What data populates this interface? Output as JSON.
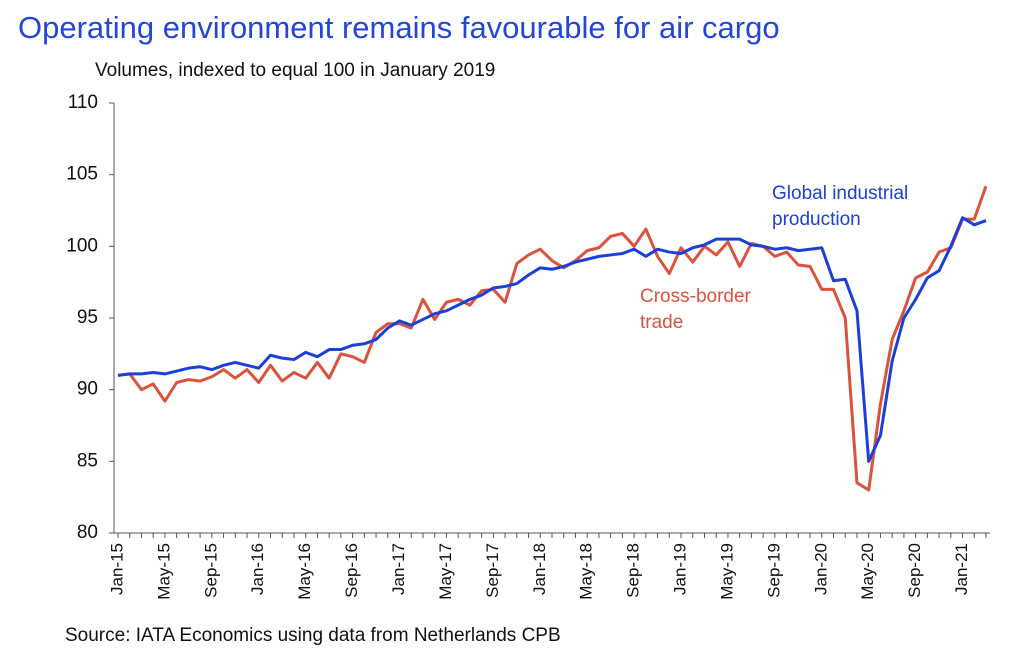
{
  "chart_data": {
    "type": "line",
    "title": "Operating environment remains favourable for air cargo",
    "subtitle": "Volumes, indexed to equal 100 in January 2019",
    "source": "Source: IATA Economics using data from Netherlands CPB",
    "categories": [
      "Jan-15",
      null,
      null,
      null,
      "May-15",
      null,
      null,
      null,
      "Sep-15",
      null,
      null,
      null,
      "Jan-16",
      null,
      null,
      null,
      "May-16",
      null,
      null,
      null,
      "Sep-16",
      null,
      null,
      null,
      "Jan-17",
      null,
      null,
      null,
      "May-17",
      null,
      null,
      null,
      "Sep-17",
      null,
      null,
      null,
      "Jan-18",
      null,
      null,
      null,
      "May-18",
      null,
      null,
      null,
      "Sep-18",
      null,
      null,
      null,
      "Jan-19",
      null,
      null,
      null,
      "May-19",
      null,
      null,
      null,
      "Sep-19",
      null,
      null,
      null,
      "Jan-20",
      null,
      null,
      null,
      "May-20",
      null,
      null,
      null,
      "Sep-20",
      null,
      null,
      null,
      "Jan-21",
      null,
      null
    ],
    "series": [
      {
        "name": "Cross-border trade",
        "label_lines": [
          "Cross-border",
          "trade"
        ],
        "color": "#d9533d",
        "values": [
          91.0,
          91.1,
          90.0,
          90.4,
          89.2,
          90.5,
          90.7,
          90.6,
          90.9,
          91.4,
          90.8,
          91.4,
          90.5,
          91.7,
          90.6,
          91.2,
          90.8,
          91.9,
          90.8,
          92.5,
          92.3,
          91.9,
          94.0,
          94.6,
          94.6,
          94.3,
          96.3,
          94.9,
          96.1,
          96.3,
          95.9,
          96.9,
          97.0,
          96.1,
          98.8,
          99.4,
          99.8,
          99.0,
          98.5,
          99.0,
          99.7,
          99.9,
          100.7,
          100.9,
          100.0,
          101.2,
          99.3,
          98.1,
          99.9,
          98.9,
          100.0,
          99.4,
          100.3,
          98.6,
          100.2,
          100.0,
          99.3,
          99.6,
          98.7,
          98.6,
          97.0,
          97.0,
          95.0,
          83.5,
          83.0,
          89.0,
          93.5,
          95.5,
          97.8,
          98.2,
          99.6,
          99.9,
          101.9,
          101.9,
          104.2
        ]
      },
      {
        "name": "Global industrial production",
        "label_lines": [
          "Global industrial",
          "production"
        ],
        "color": "#1c3fd8",
        "values": [
          91.0,
          91.1,
          91.1,
          91.2,
          91.1,
          91.3,
          91.5,
          91.6,
          91.4,
          91.7,
          91.9,
          91.7,
          91.5,
          92.4,
          92.2,
          92.1,
          92.6,
          92.3,
          92.8,
          92.8,
          93.1,
          93.2,
          93.5,
          94.3,
          94.8,
          94.5,
          94.9,
          95.3,
          95.5,
          95.9,
          96.3,
          96.6,
          97.1,
          97.2,
          97.4,
          98.0,
          98.5,
          98.4,
          98.6,
          98.9,
          99.1,
          99.3,
          99.4,
          99.5,
          99.8,
          99.3,
          99.8,
          99.6,
          99.5,
          99.9,
          100.1,
          100.5,
          100.5,
          100.5,
          100.1,
          100.0,
          99.8,
          99.9,
          99.7,
          99.8,
          99.9,
          97.6,
          97.7,
          95.5,
          85.0,
          86.8,
          92.0,
          95.0,
          96.3,
          97.8,
          98.3,
          100.0,
          102.0,
          101.5,
          101.8
        ]
      }
    ],
    "ylim": [
      80,
      110
    ],
    "yticks": [
      80,
      85,
      90,
      95,
      100,
      105,
      110
    ]
  }
}
